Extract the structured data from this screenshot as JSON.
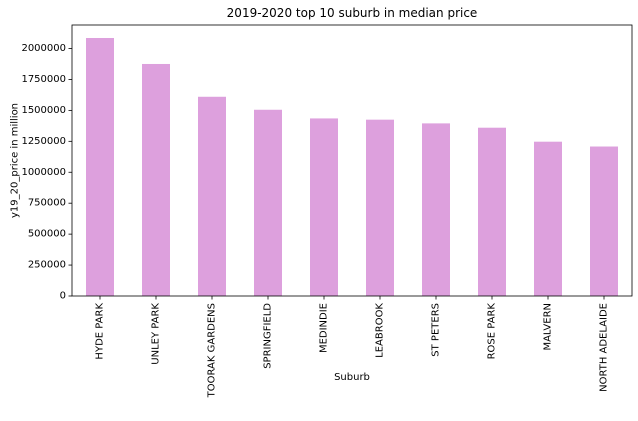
{
  "chart_data": {
    "type": "bar",
    "title": "2019-2020 top 10 suburb in median price",
    "xlabel": "Suburb",
    "ylabel": "y19_20_price in million",
    "categories": [
      "HYDE PARK",
      "UNLEY PARK",
      "TOORAK GARDENS",
      "SPRINGFIELD",
      "MEDINDIE",
      "LEABROOK",
      "ST PETERS",
      "ROSE PARK",
      "MALVERN",
      "NORTH ADELAIDE"
    ],
    "values": [
      2085000,
      1875000,
      1610000,
      1505000,
      1435000,
      1425000,
      1395000,
      1360000,
      1247000,
      1208000
    ],
    "ylim": [
      0,
      2190000
    ],
    "yticks": [
      0,
      250000,
      500000,
      750000,
      1000000,
      1250000,
      1500000,
      1750000,
      2000000
    ],
    "ytick_labels": [
      "0",
      "250000",
      "500000",
      "750000",
      "1000000",
      "1250000",
      "1500000",
      "1750000",
      "2000000"
    ],
    "bar_color": "#dda0dd",
    "grid": false,
    "legend": "none"
  }
}
